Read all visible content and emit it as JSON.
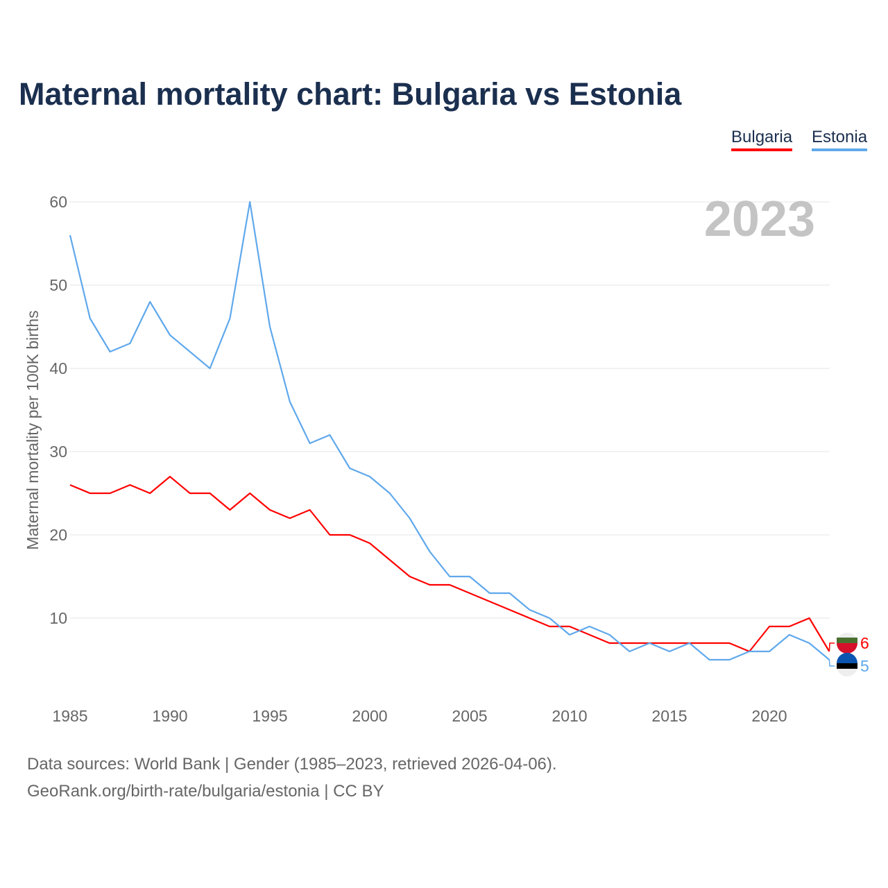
{
  "title": "Maternal mortality chart: Bulgaria vs Estonia",
  "footer": {
    "line1": "Data sources: World Bank | Gender (1985–2023, retrieved 2026-04-06).",
    "line2": "GeoRank.org/birth-rate/bulgaria/estonia | CC BY"
  },
  "chart_data": {
    "type": "line",
    "title": "Maternal mortality chart: Bulgaria vs Estonia",
    "ylabel": "Maternal mortality per 100K births",
    "xlabel": "",
    "year_label": "2023",
    "xlim": [
      1985,
      2023
    ],
    "ylim": [
      0,
      60
    ],
    "xticks": [
      "1985",
      "1990",
      "1995",
      "2000",
      "2005",
      "2010",
      "2015",
      "2020"
    ],
    "yticks": [
      "10",
      "20",
      "30",
      "40",
      "50",
      "60"
    ],
    "legend_position": "top-right",
    "x": [
      1985,
      1986,
      1987,
      1988,
      1989,
      1990,
      1991,
      1992,
      1993,
      1994,
      1995,
      1996,
      1997,
      1998,
      1999,
      2000,
      2001,
      2002,
      2003,
      2004,
      2005,
      2006,
      2007,
      2008,
      2009,
      2010,
      2011,
      2012,
      2013,
      2014,
      2015,
      2016,
      2017,
      2018,
      2019,
      2020,
      2021,
      2022,
      2023
    ],
    "series": [
      {
        "name": "Bulgaria",
        "color": "#ff0000",
        "end_label": "6",
        "values": [
          26,
          25,
          25,
          26,
          25,
          27,
          25,
          25,
          23,
          25,
          23,
          22,
          23,
          20,
          20,
          19,
          17,
          15,
          14,
          14,
          13,
          12,
          11,
          10,
          9,
          9,
          8,
          7,
          7,
          7,
          7,
          7,
          7,
          7,
          6,
          9,
          9,
          10,
          6
        ]
      },
      {
        "name": "Estonia",
        "color": "#5fa8ec",
        "end_label": "5",
        "values": [
          56,
          46,
          42,
          43,
          48,
          44,
          42,
          40,
          46,
          60,
          45,
          36,
          31,
          32,
          28,
          27,
          25,
          22,
          18,
          15,
          15,
          13,
          13,
          11,
          10,
          8,
          9,
          8,
          6,
          7,
          6,
          7,
          5,
          5,
          6,
          6,
          8,
          7,
          5
        ]
      }
    ]
  }
}
